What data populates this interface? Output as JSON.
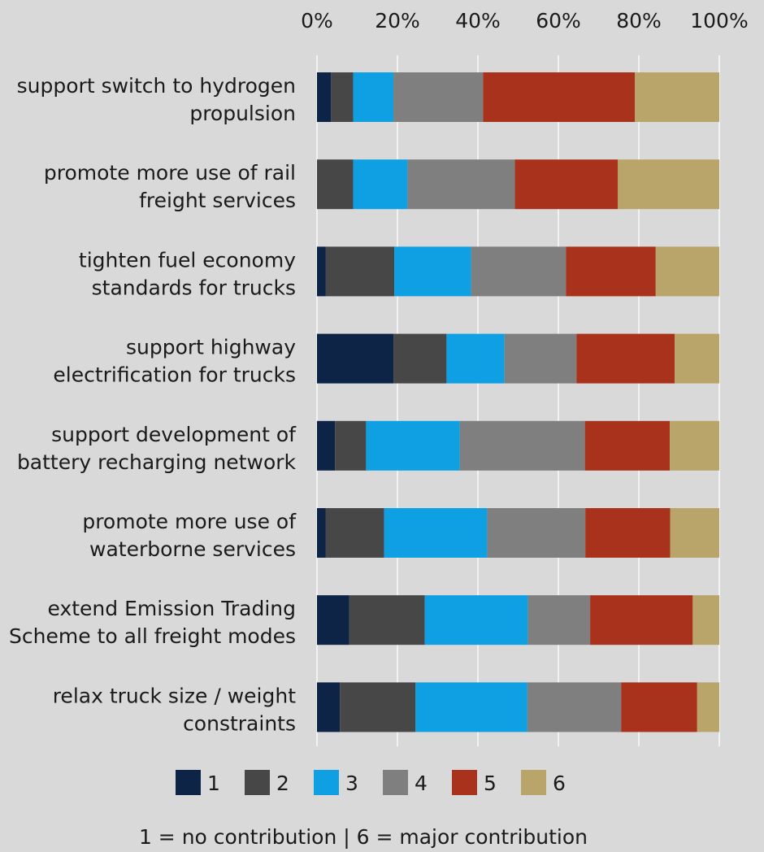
{
  "chart_data": {
    "type": "bar",
    "orientation": "horizontal",
    "stacked": "percent",
    "xlim": [
      0,
      100
    ],
    "x_ticks": [
      "0%",
      "20%",
      "40%",
      "60%",
      "80%",
      "100%"
    ],
    "x_tick_values": [
      0,
      20,
      40,
      60,
      80,
      100
    ],
    "grid": true,
    "legend_position": "bottom",
    "categories": [
      [
        "support switch to hydrogen",
        "propulsion"
      ],
      [
        "promote more use of rail",
        "freight services"
      ],
      [
        "tighten fuel economy",
        "standards for trucks"
      ],
      [
        "support highway",
        "electrification for trucks"
      ],
      [
        "support development of",
        "battery recharging network"
      ],
      [
        "promote more use of",
        "waterborne services"
      ],
      [
        "extend Emission Trading",
        "Scheme to all freight modes"
      ],
      [
        "relax truck size / weight",
        "constraints"
      ]
    ],
    "series": [
      {
        "name": "1",
        "color": "#0d2447",
        "values": [
          3.5,
          0,
          2.2,
          19,
          4.5,
          2.2,
          8,
          5.7
        ]
      },
      {
        "name": "2",
        "color": "#474747",
        "values": [
          5.5,
          9,
          17,
          13.2,
          7.7,
          14.5,
          18.8,
          18.8
        ]
      },
      {
        "name": "3",
        "color": "#0ea0e3",
        "values": [
          10,
          13.5,
          19.1,
          14.4,
          23.3,
          25.6,
          25.6,
          27.8
        ]
      },
      {
        "name": "4",
        "color": "#7f7f7f",
        "values": [
          22.3,
          26.7,
          23.6,
          17.9,
          31.1,
          24.4,
          15.5,
          23.3
        ]
      },
      {
        "name": "5",
        "color": "#a8321c",
        "values": [
          37.7,
          25.6,
          22.3,
          24.4,
          21.1,
          21.1,
          25.5,
          18.9
        ]
      },
      {
        "name": "6",
        "color": "#b9a56a",
        "values": [
          21,
          25.2,
          15.8,
          11.1,
          12.3,
          12.2,
          6.6,
          5.5
        ]
      }
    ],
    "legend_note": "1 = no contribution | 6 = major contribution"
  }
}
